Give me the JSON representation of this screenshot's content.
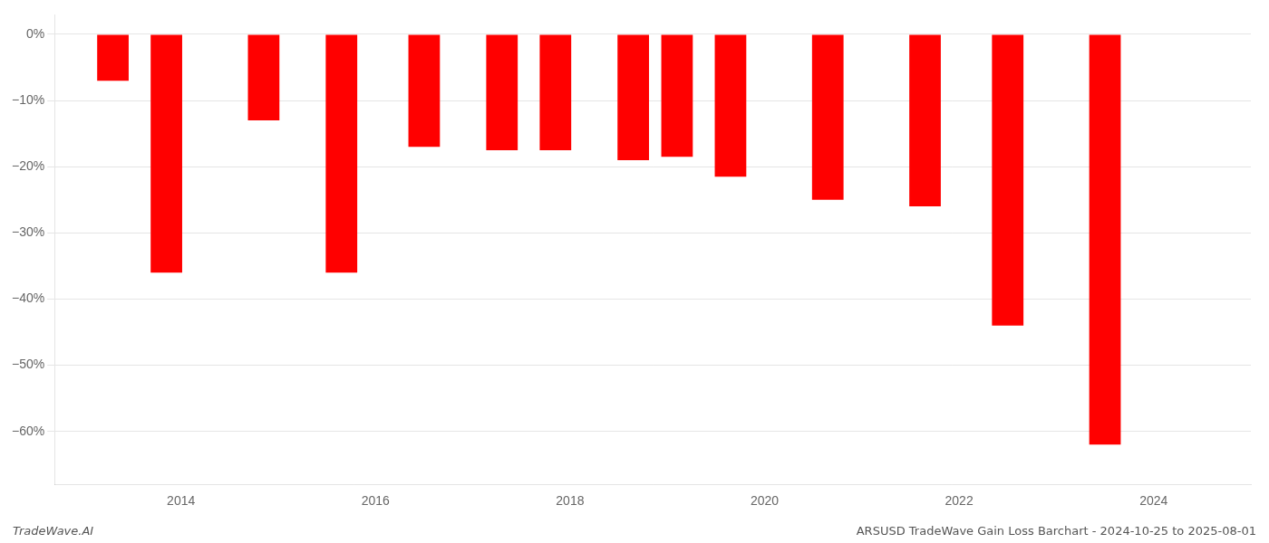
{
  "chart_data": {
    "type": "bar",
    "x": [
      2013.3,
      2013.85,
      2014.85,
      2015.65,
      2016.5,
      2017.3,
      2017.85,
      2018.65,
      2019.1,
      2019.65,
      2020.65,
      2021.65,
      2022.5,
      2023.5
    ],
    "values": [
      -7.0,
      -36.0,
      -13.0,
      -36.0,
      -17.0,
      -17.5,
      -17.5,
      -19.0,
      -18.5,
      -21.5,
      -25.0,
      -26.0,
      -44.0,
      -62.0
    ],
    "color": "#ff0000",
    "xlim": [
      2012.7,
      2025.0
    ],
    "xticks": [
      2014,
      2016,
      2018,
      2020,
      2022,
      2024
    ],
    "ylim": [
      -68,
      3
    ],
    "yticks": [
      {
        "value": 0,
        "label": "0%"
      },
      {
        "value": -10,
        "label": "−10%"
      },
      {
        "value": -20,
        "label": "−20%"
      },
      {
        "value": -30,
        "label": "−30%"
      },
      {
        "value": -40,
        "label": "−40%"
      },
      {
        "value": -50,
        "label": "−50%"
      },
      {
        "value": -60,
        "label": "−60%"
      }
    ],
    "grid": true,
    "annotations": [
      "TradeWave.AI",
      "ARSUSD TradeWave Gain Loss Barchart - 2024-10-25 to 2025-08-01"
    ]
  }
}
